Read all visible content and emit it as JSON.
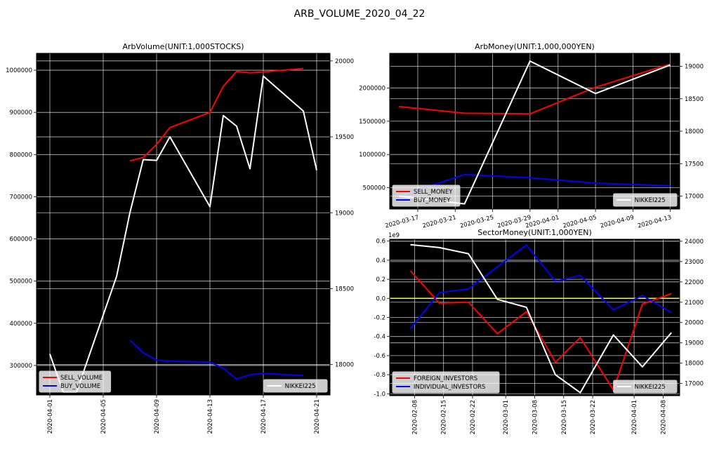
{
  "figure": {
    "title": "ARB_VOLUME_2020_04_22"
  },
  "colors": {
    "sell": "#ff0000",
    "buy": "#0000ff",
    "nikkei": "#ffffff",
    "zero_line": "#ffff00",
    "panel_bg": "#000000"
  },
  "chart_data": [
    {
      "id": "arb_volume",
      "type": "line",
      "title": "ArbVolume(UNIT:1,000STOCKS)",
      "x_ticks": [
        "2020-04-01",
        "2020-04-05",
        "2020-04-09",
        "2020-04-13",
        "2020-04-17",
        "2020-04-21"
      ],
      "xlim": [
        "2020-03-31",
        "2020-04-22"
      ],
      "ylim": [
        230000,
        1040000
      ],
      "y_ticks": [
        300000,
        400000,
        500000,
        600000,
        700000,
        800000,
        900000,
        1000000
      ],
      "y_tick_labels": [
        "300000",
        "400000",
        "500000",
        "600000",
        "700000",
        "800000",
        "900000",
        "1000000"
      ],
      "y2lim": [
        17800,
        20050
      ],
      "y2_ticks": [
        18000,
        18500,
        19000,
        19500,
        20000
      ],
      "y2_tick_labels": [
        "18000",
        "18500",
        "19000",
        "19500",
        "20000"
      ],
      "grid": true,
      "legend_left": "lower-left",
      "legend_right": "lower-right",
      "series": [
        {
          "name": "SELL_VOLUME",
          "color_key": "sell",
          "axis": "left",
          "x": [
            "2020-04-07",
            "2020-04-08",
            "2020-04-09",
            "2020-04-10",
            "2020-04-13",
            "2020-04-14",
            "2020-04-15",
            "2020-04-16",
            "2020-04-17",
            "2020-04-20"
          ],
          "y": [
            785000,
            793000,
            824000,
            864000,
            900000,
            962000,
            997000,
            994000,
            996000,
            1004000
          ]
        },
        {
          "name": "BUY_VOLUME",
          "color_key": "buy",
          "axis": "left",
          "x": [
            "2020-04-07",
            "2020-04-08",
            "2020-04-09",
            "2020-04-10",
            "2020-04-13",
            "2020-04-14",
            "2020-04-15",
            "2020-04-16",
            "2020-04-17",
            "2020-04-20"
          ],
          "y": [
            360000,
            330000,
            313000,
            310000,
            308000,
            293000,
            268000,
            278000,
            281000,
            276000
          ]
        },
        {
          "name": "NIKKEI225",
          "color_key": "nikkei",
          "axis": "right",
          "x": [
            "2020-04-01",
            "2020-04-02",
            "2020-04-03",
            "2020-04-06",
            "2020-04-07",
            "2020-04-08",
            "2020-04-09",
            "2020-04-10",
            "2020-04-13",
            "2020-04-14",
            "2020-04-15",
            "2020-04-16",
            "2020-04-17",
            "2020-04-20",
            "2020-04-21"
          ],
          "y": [
            18070,
            17820,
            17820,
            18580,
            19000,
            19350,
            19345,
            19500,
            19040,
            19640,
            19570,
            19290,
            19900,
            19670,
            19280
          ]
        }
      ]
    },
    {
      "id": "arb_money",
      "type": "line",
      "title": "ArbMoney(UNIT:1,000,000YEN)",
      "x_ticks": [
        "2020-03-17",
        "2020-03-21",
        "2020-03-25",
        "2020-03-29",
        "2020-04-01",
        "2020-04-05",
        "2020-04-09",
        "2020-04-13"
      ],
      "xlim": [
        "2020-03-14",
        "2020-04-14"
      ],
      "ylim": [
        180000,
        2520000
      ],
      "y_ticks": [
        500000,
        1000000,
        1500000,
        2000000
      ],
      "y_tick_labels": [
        "500000",
        "1000000",
        "1500000",
        "2000000"
      ],
      "y2lim": [
        16800,
        19200
      ],
      "y2_ticks": [
        17000,
        17500,
        18000,
        18500,
        19000
      ],
      "y2_tick_labels": [
        "17000",
        "17500",
        "18000",
        "18500",
        "19000"
      ],
      "grid": true,
      "legend_left": "lower-left",
      "legend_right": "lower-right",
      "series": [
        {
          "name": "SELL_MONEY",
          "color_key": "sell",
          "axis": "left",
          "x": [
            "2020-03-15",
            "2020-03-22",
            "2020-03-29",
            "2020-04-05",
            "2020-04-13"
          ],
          "y": [
            1720000,
            1620000,
            1610000,
            2010000,
            2360000
          ]
        },
        {
          "name": "BUY_MONEY",
          "color_key": "buy",
          "axis": "left",
          "x": [
            "2020-03-15",
            "2020-03-22",
            "2020-03-29",
            "2020-04-05",
            "2020-04-13"
          ],
          "y": [
            370000,
            700000,
            650000,
            570000,
            530000
          ]
        },
        {
          "name": "NIKKEI225",
          "color_key": "nikkei",
          "axis": "right",
          "x": [
            "2020-03-15",
            "2020-03-22",
            "2020-03-29",
            "2020-04-05",
            "2020-04-13"
          ],
          "y": [
            17000,
            16880,
            19080,
            18580,
            19020
          ]
        }
      ]
    },
    {
      "id": "sector_money",
      "type": "line",
      "title": "SectorMoney(UNIT:1,000YEN)",
      "y_offset_label": "1e9",
      "x_ticks": [
        "2020-02-08",
        "2020-02-15",
        "2020-02-22",
        "2020-03-01",
        "2020-03-08",
        "2020-03-15",
        "2020-03-22",
        "2020-04-01",
        "2020-04-08"
      ],
      "xlim": [
        "2020-02-02",
        "2020-04-12"
      ],
      "ylim": [
        -1.02,
        0.62
      ],
      "y_ticks": [
        -1.0,
        -0.8,
        -0.6,
        -0.4,
        -0.2,
        0.0,
        0.2,
        0.4,
        0.6
      ],
      "y_tick_labels": [
        "-1.0",
        "-0.8",
        "-0.6",
        "-0.4",
        "-0.2",
        "0.0",
        "0.2",
        "0.4",
        "0.6"
      ],
      "y2lim": [
        16400,
        24100
      ],
      "y2_ticks": [
        17000,
        18000,
        19000,
        20000,
        21000,
        22000,
        23000,
        24000
      ],
      "y2_tick_labels": [
        "17000",
        "18000",
        "19000",
        "20000",
        "21000",
        "22000",
        "23000",
        "24000"
      ],
      "grid": true,
      "reference_line": 0.0,
      "legend_left": "lower-left",
      "legend_right": "lower-right",
      "series": [
        {
          "name": "FOREIGN_INVESTORS",
          "color_key": "sell",
          "axis": "left",
          "x": [
            "2020-02-07",
            "2020-02-14",
            "2020-02-21",
            "2020-02-28",
            "2020-03-06",
            "2020-03-13",
            "2020-03-19",
            "2020-03-27",
            "2020-04-03",
            "2020-04-10"
          ],
          "y": [
            0.29,
            -0.05,
            -0.04,
            -0.37,
            -0.14,
            -0.67,
            -0.41,
            -0.96,
            -0.06,
            0.05
          ]
        },
        {
          "name": "INDIVIDUAL_INVESTORS",
          "color_key": "buy",
          "axis": "left",
          "x": [
            "2020-02-07",
            "2020-02-14",
            "2020-02-21",
            "2020-02-28",
            "2020-03-06",
            "2020-03-13",
            "2020-03-19",
            "2020-03-27",
            "2020-04-03",
            "2020-04-10"
          ],
          "y": [
            -0.32,
            0.06,
            0.1,
            0.33,
            0.56,
            0.18,
            0.24,
            -0.12,
            0.03,
            -0.15
          ]
        },
        {
          "name": "NIKKEI225",
          "color_key": "nikkei",
          "axis": "right",
          "x": [
            "2020-02-07",
            "2020-02-14",
            "2020-02-21",
            "2020-02-28",
            "2020-03-06",
            "2020-03-13",
            "2020-03-19",
            "2020-03-27",
            "2020-04-03",
            "2020-04-10"
          ],
          "y": [
            23830,
            23690,
            23390,
            21140,
            20750,
            17430,
            16550,
            19390,
            17820,
            19500
          ]
        }
      ]
    }
  ]
}
